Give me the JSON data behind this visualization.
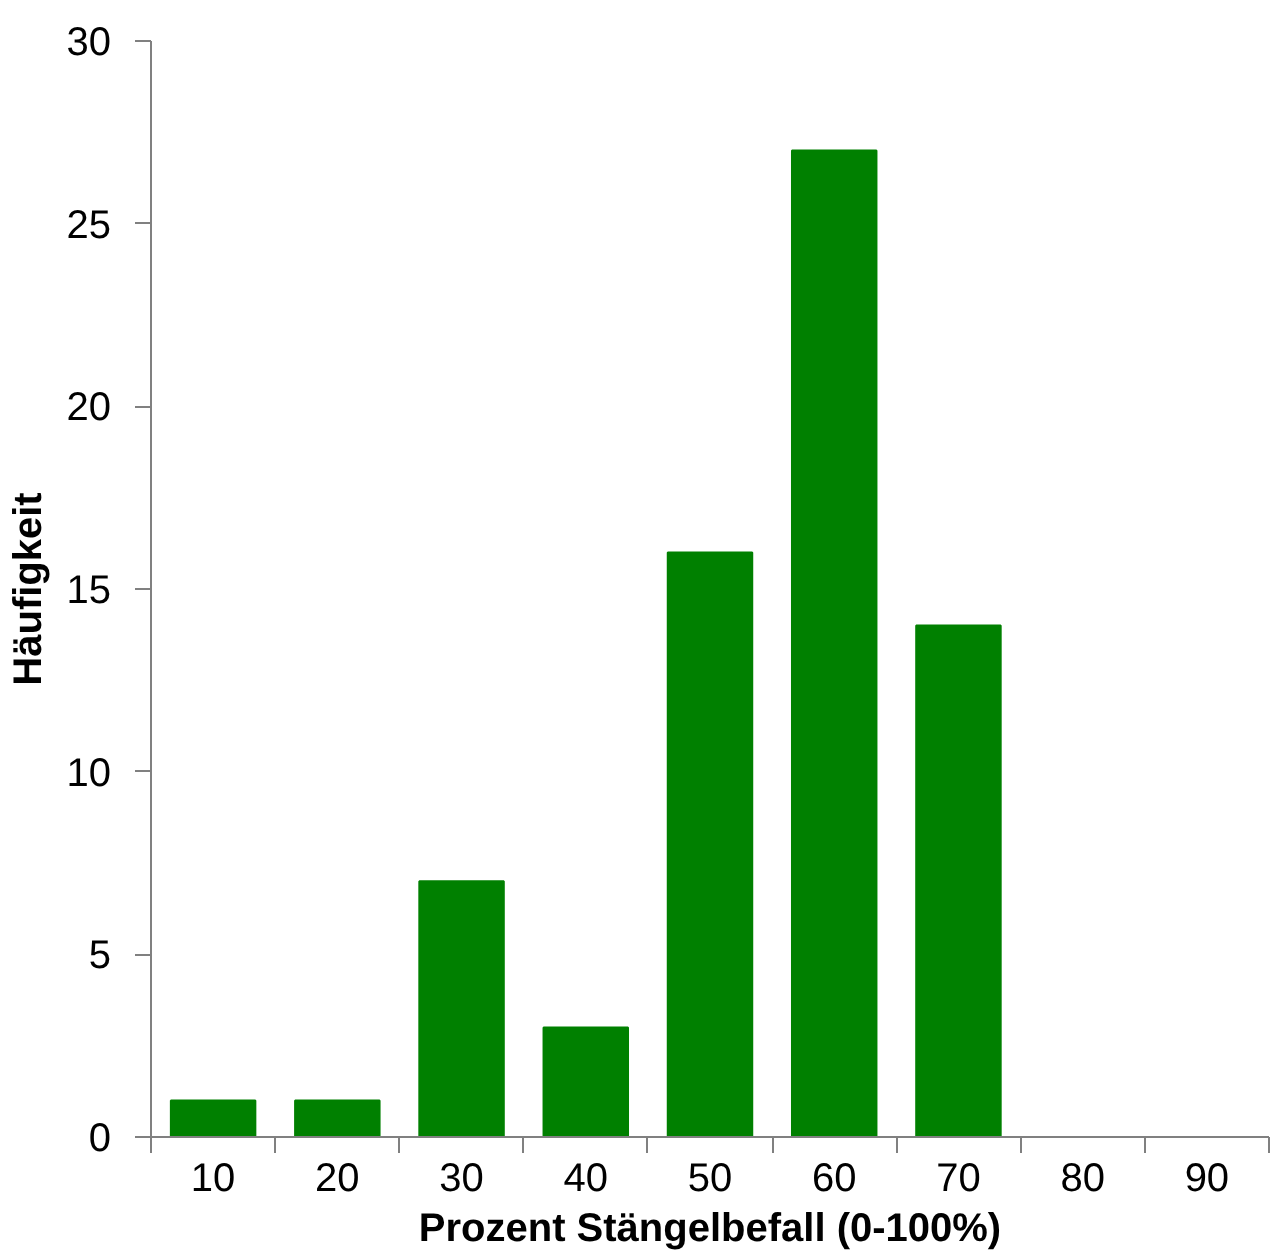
{
  "chart_data": {
    "type": "bar",
    "xlabel": "Prozent Stängelbefall (0-100%)",
    "ylabel": "Häufigkeit",
    "categories": [
      "10",
      "20",
      "30",
      "40",
      "50",
      "60",
      "70",
      "80",
      "90"
    ],
    "values": [
      1,
      1,
      7,
      3,
      16,
      27,
      14,
      0,
      0
    ],
    "color": "#008000",
    "ylim": [
      0,
      30
    ],
    "yticks": [
      0,
      5,
      10,
      15,
      20,
      25,
      30
    ],
    "grid": false
  }
}
